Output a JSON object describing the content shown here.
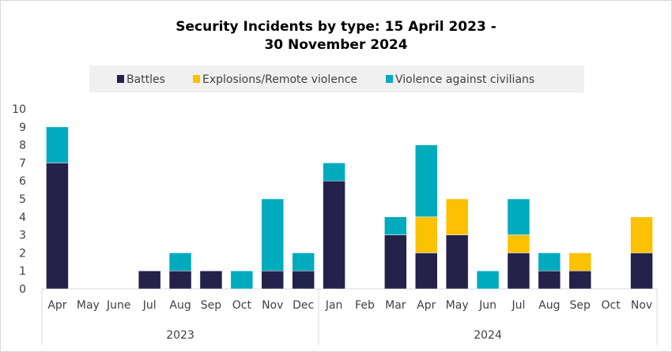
{
  "chart_data": {
    "type": "bar",
    "stacked": true,
    "title_line1": "Security Incidents by type: 15 April 2023 -",
    "title_line2": "30 November 2024",
    "legend_position": "top",
    "ylim": [
      0,
      10
    ],
    "yticks": [
      "0",
      "1",
      "2",
      "3",
      "4",
      "5",
      "6",
      "7",
      "8",
      "9",
      "10"
    ],
    "grid": false,
    "groups": [
      {
        "label": "2023",
        "categories": [
          "Apr",
          "May",
          "June",
          "Jul",
          "Aug",
          "Sep",
          "Oct",
          "Nov",
          "Dec"
        ]
      },
      {
        "label": "2024",
        "categories": [
          "Jan",
          "Feb",
          "Mar",
          "Apr",
          "May",
          "Jun",
          "Jul",
          "Aug",
          "Sep",
          "Oct",
          "Nov"
        ]
      }
    ],
    "series": [
      {
        "name": "Battles",
        "color": "#24214b",
        "values": [
          7,
          0,
          0,
          1,
          1,
          1,
          0,
          1,
          1,
          6,
          0,
          3,
          2,
          3,
          0,
          2,
          1,
          1,
          0,
          2
        ]
      },
      {
        "name": "Explosions/Remote violence",
        "color": "#fcc100",
        "values": [
          0,
          0,
          0,
          0,
          0,
          0,
          0,
          0,
          0,
          0,
          0,
          0,
          2,
          2,
          0,
          1,
          0,
          1,
          0,
          2
        ]
      },
      {
        "name": "Violence against civilians",
        "color": "#00abbd",
        "values": [
          2,
          0,
          0,
          0,
          1,
          0,
          1,
          4,
          1,
          1,
          0,
          1,
          4,
          0,
          1,
          2,
          1,
          0,
          0,
          0
        ]
      }
    ]
  }
}
